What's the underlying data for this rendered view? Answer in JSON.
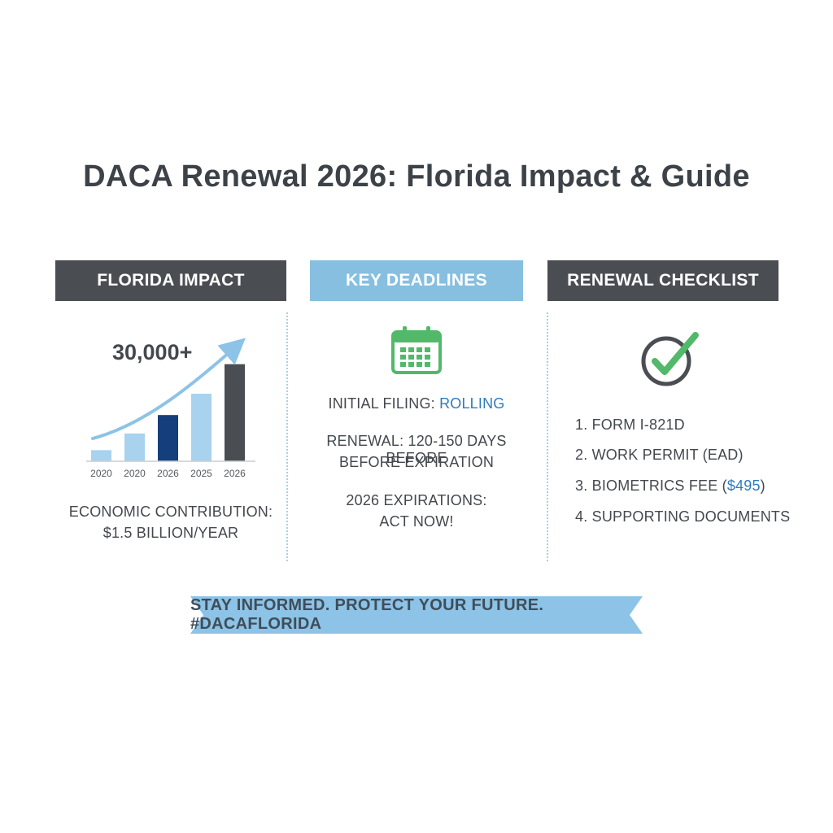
{
  "title": "DACA Renewal 2026: Florida Impact & Guide",
  "colors": {
    "dark_header": "#4a4d52",
    "light_header": "#86bfe0",
    "accent_blue": "#2e7bbf",
    "check_green": "#52b86a",
    "calendar_green": "#52b86a"
  },
  "florida_impact": {
    "header": "FLORIDA IMPACT",
    "big_number": "30,000+",
    "chart_data": {
      "type": "bar",
      "categories": [
        "2020",
        "2020",
        "2026",
        "2025",
        "2026"
      ],
      "values": [
        12,
        30,
        50,
        73,
        105
      ],
      "colors": [
        "#a8d2ee",
        "#a8d2ee",
        "#143f7c",
        "#a8d2ee",
        "#4a4d52"
      ],
      "ylim": [
        0,
        110
      ],
      "trend_arrow": true
    },
    "contribution_line1": "ECONOMIC CONTRIBUTION:",
    "contribution_line2": "$1.5 BILLION/YEAR"
  },
  "key_deadlines": {
    "header": "KEY DEADLINES",
    "icon": "calendar-icon",
    "initial_filing_label": "INITIAL FILING: ",
    "initial_filing_value": "ROLLING",
    "renewal_line1": "RENEWAL: 120-150 DAYS BEFORE",
    "renewal_line2": "BEFORE EXPIRATION",
    "expirations_line1": "2026 EXPIRATIONS:",
    "expirations_line2": "ACT NOW!"
  },
  "renewal_checklist": {
    "header": "RENEWAL CHECKLIST",
    "icon": "checkmark-circle-icon",
    "item1": "1. FORM I-821D",
    "item2": "2. WORK PERMIT (EAD)",
    "item3_prefix": "3. BIOMETRICS FEE (",
    "item3_amount": "$495",
    "item3_suffix": ")",
    "item4": "4. SUPPORTING DOCUMENTS"
  },
  "banner": {
    "text": "STAY INFORMED. PROTECT YOUR FUTURE. #DACAFLORIDA"
  }
}
